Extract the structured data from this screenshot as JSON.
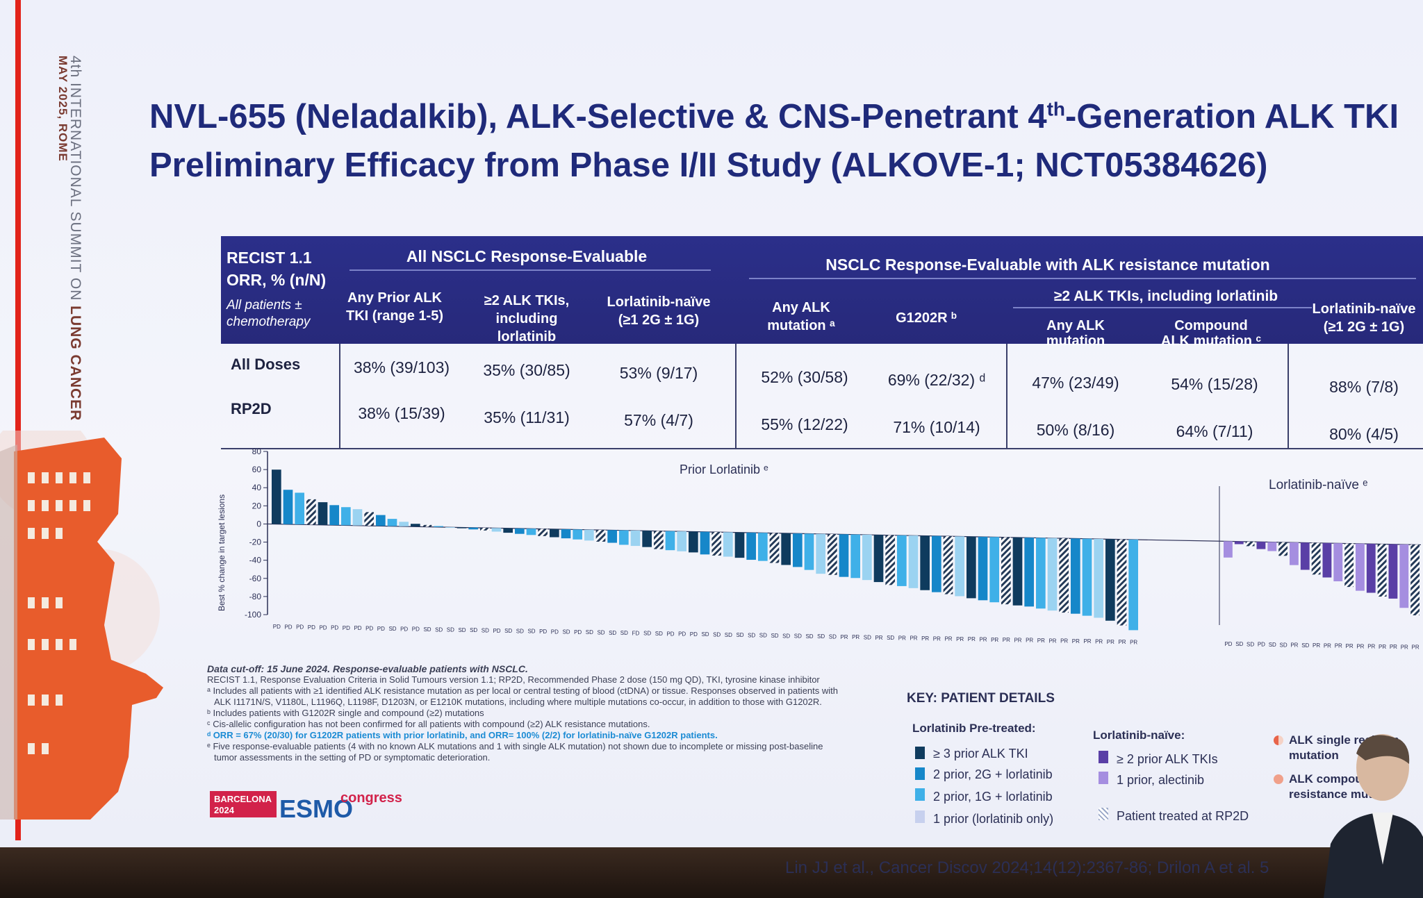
{
  "sidebar": {
    "date": "MAY 2025, ROME",
    "summit_prefix": "4th INTERNATIONAL SUMMIT ON ",
    "summit_bold": "LUNG CANCER"
  },
  "title_line1_a": "NVL-655 (Neladalkib), ALK-Selective & CNS-Penetrant 4",
  "title_line1_sup": "th",
  "title_line1_b": "-Generation ALK TKI",
  "title_line2": "Preliminary Efficacy from Phase I/II Study (ALKOVE-1; NCT05384626)",
  "table": {
    "corner_title": "RECIST 1.1",
    "corner_sub": "ORR, % (n/N)",
    "corner_note": "All patients ± chemotherapy",
    "group1": "All NSCLC Response-Evaluable",
    "group2": "NSCLC Response-Evaluable with ALK resistance mutation",
    "subgroup": "≥2 ALK TKIs, including lorlatinib",
    "cols": [
      "Any Prior ALK TKI (range 1-5)",
      "≥2 ALK TKIs, including lorlatinib",
      "Lorlatinib-naïve (≥1 2G ± 1G)",
      "Any ALK mutation ᵃ",
      "G1202R ᵇ",
      "Any ALK mutation",
      "Compound ALK mutation ᶜ",
      "Lorlatinib-naïve (≥1 2G ± 1G)"
    ],
    "rows": [
      {
        "label": "All Doses",
        "values": [
          "38% (39/103)",
          "35% (30/85)",
          "53% (9/17)",
          "52% (30/58)",
          "69% (22/32) ᵈ",
          "47% (23/49)",
          "54% (15/28)",
          "88% (7/8)"
        ]
      },
      {
        "label": "RP2D",
        "values": [
          "38% (15/39)",
          "35% (11/31)",
          "57% (4/7)",
          "55% (12/22)",
          "71% (10/14)",
          "50% (8/16)",
          "64% (7/11)",
          "80% (4/5)"
        ]
      }
    ]
  },
  "chart_data": {
    "type": "bar",
    "title": "",
    "ylabel": "Best % change in target lesions",
    "ylim": [
      -100,
      80
    ],
    "yticks": [
      80,
      60,
      40,
      20,
      0,
      -20,
      -40,
      -60,
      -80,
      -100
    ],
    "panel_labels": [
      "Prior Lorlatinib ᵉ",
      "Lorlatinib-naïve ᵉ"
    ],
    "prior_lorlatinib": {
      "values": [
        60,
        38,
        35,
        28,
        25,
        22,
        20,
        18,
        15,
        12,
        8,
        5,
        3,
        2,
        1,
        0,
        -1,
        -2,
        -3,
        -4,
        -5,
        -6,
        -7,
        -8,
        -9,
        -10,
        -11,
        -12,
        -13,
        -14,
        -16,
        -17,
        -18,
        -20,
        -21,
        -22,
        -23,
        -25,
        -26,
        -27,
        -28,
        -30,
        -31,
        -33,
        -35,
        -37,
        -40,
        -44,
        -45,
        -47,
        -48,
        -50,
        -52,
        -55,
        -56,
        -58,
        -60,
        -62,
        -64,
        -66,
        -68,
        -70,
        -72,
        -74,
        -75,
        -76,
        -78,
        -80,
        -82,
        -83,
        -85,
        -87,
        -90,
        -95,
        -100
      ],
      "responses": [
        "PD",
        "PD",
        "PD",
        "PD",
        "PD",
        "PD",
        "PD",
        "PD",
        "PD",
        "PD",
        "SD",
        "PD",
        "PD",
        "SD",
        "SD",
        "SD",
        "SD",
        "SD",
        "SD",
        "PD",
        "SD",
        "SD",
        "SD",
        "PD",
        "PD",
        "SD",
        "PD",
        "SD",
        "SD",
        "SD",
        "SD",
        "FD",
        "SD",
        "SD",
        "PD",
        "PD",
        "PD",
        "SD",
        "SD",
        "SD",
        "SD",
        "SD",
        "SD",
        "SD",
        "SD",
        "SD",
        "SD",
        "SD",
        "SD",
        "PR",
        "PR",
        "SD",
        "PR",
        "SD",
        "PR",
        "PR",
        "PR",
        "PR",
        "PR",
        "PR",
        "PR",
        "PR",
        "PR",
        "PR",
        "PR",
        "PR",
        "PR",
        "PR",
        "PR",
        "PR",
        "PR",
        "PR",
        "PR",
        "PR",
        "PR"
      ]
    },
    "lorlatinib_naive": {
      "values": [
        -18,
        -3,
        -5,
        -8,
        -10,
        -15,
        -25,
        -30,
        -35,
        -38,
        -42,
        -48,
        -52,
        -54,
        -58,
        -60,
        -70,
        -78
      ],
      "responses": [
        "PD",
        "SD",
        "SD",
        "PD",
        "SD",
        "SD",
        "PR",
        "SD",
        "PR",
        "PR",
        "PR",
        "PR",
        "PR",
        "PR",
        "PR",
        "PR",
        "PR",
        "PR"
      ]
    },
    "colors": {
      "dark": "#0f3b5e",
      "mid": "#1687c9",
      "light": "#3fb0e8",
      "pale": "#9bd3f1",
      "purple_dark": "#5a3fa6",
      "purple_light": "#a58ee0"
    }
  },
  "footnotes": [
    "Data cut-off: 15 June 2024. Response-evaluable patients with NSCLC.",
    "RECIST 1.1, Response Evaluation Criteria in Solid Tumours version 1.1; RP2D, Recommended Phase 2 dose (150 mg QD), TKI, tyrosine kinase inhibitor",
    "ᵃ Includes all patients with ≥1 identified ALK resistance mutation as per local or central testing of blood (ctDNA) or tissue. Responses observed in patients with",
    "ALK I1171N/S, V1180L, L1196Q, L1198F, D1203N, or E1210K mutations, including where multiple mutations co-occur, in addition to those with G1202R.",
    "ᵇ Includes patients with G1202R single and compound (≥2) mutations",
    "ᶜ Cis-allelic configuration has not been confirmed for all patients with compound (≥2) ALK resistance mutations.",
    "ᵈ ORR = 67% (20/30) for G1202R patients with prior lorlatinib, and ORR= 100% (2/2) for lorlatinib-naïve G1202R patients.",
    "ᵉ Five response-evaluable patients (4 with no known ALK mutations and 1 with single ALK mutation) not shown due to incomplete or missing post-baseline",
    "tumor assessments in the setting of PD or symptomatic deterioration."
  ],
  "key": {
    "title": "KEY: PATIENT DETAILS",
    "pretreated_title": "Lorlatinib Pre-treated:",
    "pretreated": [
      "≥ 3 prior ALK TKI",
      "2 prior, 2G + lorlatinib",
      "2 prior, 1G + lorlatinib",
      "1 prior (lorlatinib only)"
    ],
    "naive_title": "Lorlatinib-naïve:",
    "naive": [
      "≥ 2 prior ALK TKIs",
      "1 prior, alectinib"
    ],
    "rp2d": "Patient treated at RP2D",
    "single": "ALK single resistan mutation",
    "compound": "ALK compound (≥ resistance mutatio"
  },
  "logo": {
    "city": "BARCELONA",
    "year": "2024",
    "brand": "ESMO",
    "word": "congress"
  },
  "citation": "Lin JJ et al., Cancer Discov 2024;14(12):2367-86; Drilon A et al. 5"
}
